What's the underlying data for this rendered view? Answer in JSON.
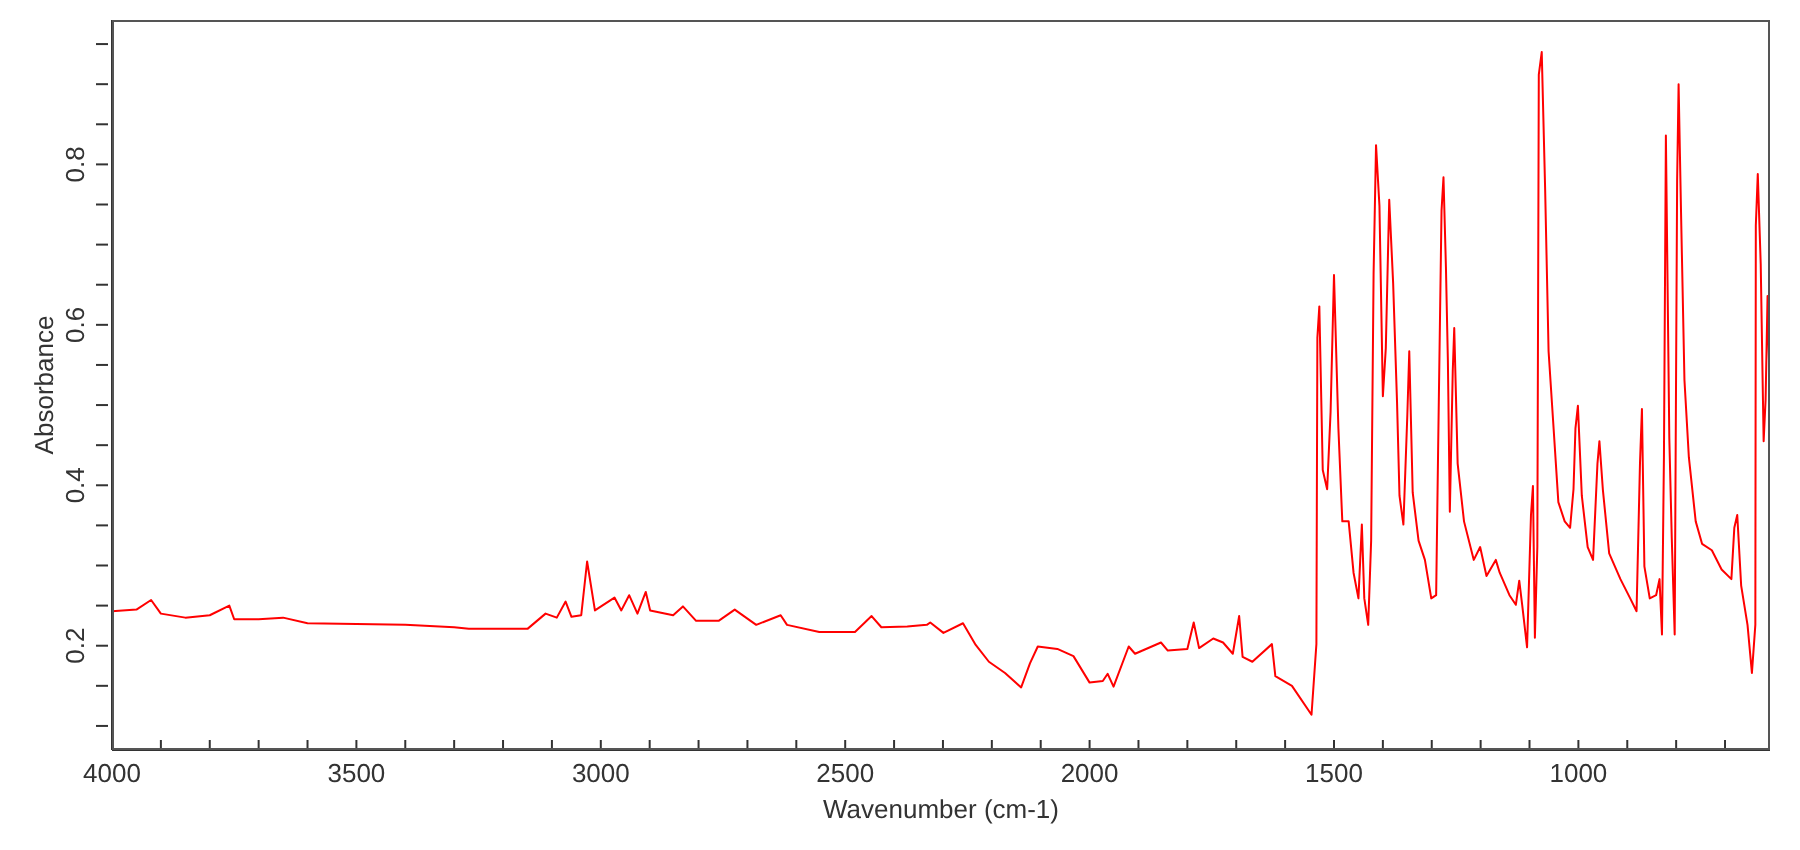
{
  "chart_data": {
    "type": "line",
    "xlabel": "Wavenumber (cm-1)",
    "ylabel": "Absorbance",
    "xlim": [
      4000,
      608
    ],
    "ylim": [
      0.07,
      0.98
    ],
    "xticks": [
      4000,
      {
        "value": 3900,
        "label": null
      },
      {
        "value": 3800,
        "label": null
      },
      {
        "value": 3700,
        "label": null
      },
      {
        "value": 3600,
        "label": null
      },
      3500,
      {
        "value": 3400,
        "label": null
      },
      {
        "value": 3300,
        "label": null
      },
      {
        "value": 3200,
        "label": null
      },
      {
        "value": 3100,
        "label": null
      },
      3000,
      {
        "value": 2900,
        "label": null
      },
      {
        "value": 2800,
        "label": null
      },
      {
        "value": 2700,
        "label": null
      },
      {
        "value": 2600,
        "label": null
      },
      2500,
      {
        "value": 2400,
        "label": null
      },
      {
        "value": 2300,
        "label": null
      },
      {
        "value": 2200,
        "label": null
      },
      {
        "value": 2100,
        "label": null
      },
      2000,
      {
        "value": 1900,
        "label": null
      },
      {
        "value": 1800,
        "label": null
      },
      {
        "value": 1700,
        "label": null
      },
      {
        "value": 1600,
        "label": null
      },
      1500,
      {
        "value": 1400,
        "label": null
      },
      {
        "value": 1300,
        "label": null
      },
      {
        "value": 1200,
        "label": null
      },
      {
        "value": 1100,
        "label": null
      },
      1000,
      {
        "value": 900,
        "label": null
      },
      {
        "value": 800,
        "label": null
      },
      {
        "value": 700,
        "label": null
      }
    ],
    "yticks": [
      {
        "value": 0.1,
        "label": null
      },
      {
        "value": 0.15,
        "label": null
      },
      {
        "value": 0.2,
        "label": "0.2"
      },
      {
        "value": 0.25,
        "label": null
      },
      {
        "value": 0.3,
        "label": null
      },
      {
        "value": 0.35,
        "label": null
      },
      {
        "value": 0.4,
        "label": "0.4"
      },
      {
        "value": 0.45,
        "label": null
      },
      {
        "value": 0.5,
        "label": null
      },
      {
        "value": 0.55,
        "label": null
      },
      {
        "value": 0.6,
        "label": "0.6"
      },
      {
        "value": 0.65,
        "label": null
      },
      {
        "value": 0.7,
        "label": null
      },
      {
        "value": 0.75,
        "label": null
      },
      {
        "value": 0.8,
        "label": "0.8"
      },
      {
        "value": 0.85,
        "label": null
      },
      {
        "value": 0.9,
        "label": null
      },
      {
        "value": 0.95,
        "label": null
      }
    ],
    "x": [
      4000,
      3950,
      3920,
      3900,
      3850,
      3800,
      3760,
      3750,
      3700,
      3650,
      3600,
      3500,
      3400,
      3300,
      3270,
      3150,
      3113,
      3090,
      3072,
      3060,
      3040,
      3028,
      3012,
      2972,
      2958,
      2942,
      2925,
      2908,
      2899,
      2852,
      2832,
      2805,
      2759,
      2726,
      2682,
      2632,
      2619,
      2553,
      2480,
      2446,
      2426,
      2373,
      2333,
      2326,
      2299,
      2259,
      2233,
      2206,
      2173,
      2140,
      2122,
      2106,
      2066,
      2033,
      2000,
      1973,
      1963,
      1951,
      1920,
      1907,
      1854,
      1840,
      1800,
      1787,
      1776,
      1747,
      1727,
      1707,
      1694,
      1687,
      1667,
      1627,
      1620,
      1586,
      1546,
      1536,
      1534,
      1530,
      1523,
      1514,
      1507,
      1500,
      1491,
      1483,
      1470,
      1460,
      1450,
      1443,
      1438,
      1430,
      1424,
      1419,
      1414,
      1407,
      1400,
      1394,
      1387,
      1379,
      1371,
      1366,
      1358,
      1350,
      1346,
      1339,
      1327,
      1314,
      1301,
      1291,
      1287,
      1280,
      1276,
      1271,
      1267,
      1263,
      1257,
      1254,
      1247,
      1234,
      1214,
      1201,
      1188,
      1169,
      1161,
      1141,
      1128,
      1121,
      1115,
      1105,
      1097,
      1093,
      1089,
      1084,
      1081,
      1075,
      1068,
      1061,
      1052,
      1041,
      1028,
      1017,
      1010,
      1006,
      1001,
      993,
      981,
      970,
      961,
      957,
      950,
      937,
      914,
      894,
      881,
      874,
      870,
      865,
      854,
      841,
      834,
      829,
      825,
      821,
      814,
      809,
      803,
      798,
      795,
      790,
      783,
      774,
      760,
      747,
      727,
      707,
      687,
      681,
      675,
      667,
      654,
      645,
      638,
      637,
      633,
      627,
      621,
      617,
      613,
      610
    ],
    "series": [
      {
        "color": "#ff0000",
        "values": [
          0.243,
          0.245,
          0.257,
          0.24,
          0.235,
          0.238,
          0.25,
          0.233,
          0.233,
          0.235,
          0.228,
          0.227,
          0.226,
          0.223,
          0.221,
          0.221,
          0.24,
          0.235,
          0.255,
          0.236,
          0.238,
          0.305,
          0.244,
          0.26,
          0.244,
          0.263,
          0.24,
          0.267,
          0.244,
          0.238,
          0.249,
          0.231,
          0.231,
          0.245,
          0.226,
          0.238,
          0.226,
          0.217,
          0.217,
          0.237,
          0.223,
          0.224,
          0.226,
          0.229,
          0.216,
          0.228,
          0.201,
          0.18,
          0.166,
          0.148,
          0.178,
          0.199,
          0.196,
          0.187,
          0.154,
          0.156,
          0.165,
          0.149,
          0.199,
          0.19,
          0.204,
          0.194,
          0.196,
          0.229,
          0.197,
          0.209,
          0.204,
          0.19,
          0.237,
          0.186,
          0.18,
          0.202,
          0.162,
          0.15,
          0.114,
          0.202,
          0.584,
          0.623,
          0.419,
          0.395,
          0.491,
          0.662,
          0.471,
          0.355,
          0.355,
          0.291,
          0.259,
          0.351,
          0.259,
          0.226,
          0.331,
          0.664,
          0.824,
          0.748,
          0.511,
          0.571,
          0.756,
          0.652,
          0.503,
          0.387,
          0.351,
          0.487,
          0.567,
          0.391,
          0.331,
          0.307,
          0.259,
          0.263,
          0.443,
          0.742,
          0.784,
          0.672,
          0.555,
          0.367,
          0.543,
          0.596,
          0.427,
          0.355,
          0.307,
          0.323,
          0.287,
          0.307,
          0.291,
          0.263,
          0.251,
          0.281,
          0.251,
          0.198,
          0.363,
          0.399,
          0.21,
          0.323,
          0.912,
          0.94,
          0.768,
          0.567,
          0.483,
          0.379,
          0.355,
          0.347,
          0.395,
          0.471,
          0.499,
          0.387,
          0.323,
          0.307,
          0.427,
          0.455,
          0.395,
          0.315,
          0.283,
          0.259,
          0.243,
          0.427,
          0.495,
          0.299,
          0.259,
          0.263,
          0.283,
          0.214,
          0.435,
          0.836,
          0.459,
          0.335,
          0.214,
          0.78,
          0.9,
          0.74,
          0.531,
          0.435,
          0.355,
          0.327,
          0.319,
          0.295,
          0.283,
          0.347,
          0.363,
          0.275,
          0.226,
          0.166,
          0.226,
          0.724,
          0.788,
          0.676,
          0.455,
          0.507,
          0.636,
          0.555
        ]
      }
    ]
  }
}
